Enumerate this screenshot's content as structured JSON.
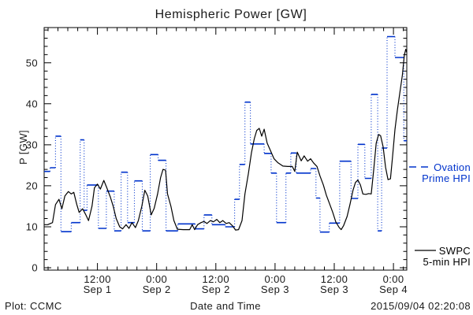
{
  "title": "Hemispheric Power [GW]",
  "footer": {
    "left": "Plot: CCMC",
    "xlabel": "Date and Time",
    "timestamp": "2015/09/04 02:20:08"
  },
  "legend": {
    "ovation": {
      "line1": "Ovation",
      "line2": "Prime HPI",
      "color": "#0033cc"
    },
    "swpc": {
      "line1": "SWPC",
      "line2": "5-min HPI",
      "color": "#000000"
    }
  },
  "chart_data": {
    "type": "line",
    "title": "Hemispheric Power [GW]",
    "xlabel": "Date and Time",
    "ylabel": "P [GW]",
    "x_unit": "hours since 2015-09-01 00:00 UT",
    "xlim": [
      1.2,
      74.7
    ],
    "ylim": [
      0,
      58.6
    ],
    "grid": false,
    "legend_position": "right-outside",
    "y_major_ticks": [
      0,
      10,
      20,
      30,
      40,
      50
    ],
    "y_minor_step": 2,
    "x_minor_step_hours": 2,
    "x_major_ticks": [
      {
        "hour": 12,
        "time": "12:00",
        "date": "Sep 1"
      },
      {
        "hour": 24,
        "time": "0:00",
        "date": "Sep 2"
      },
      {
        "hour": 36,
        "time": "12:00",
        "date": "Sep 2"
      },
      {
        "hour": 48,
        "time": "0:00",
        "date": "Sep 3"
      },
      {
        "hour": 60,
        "time": "12:00",
        "date": "Sep 3"
      },
      {
        "hour": 72,
        "time": "0:00",
        "date": "Sep 4"
      }
    ],
    "series": [
      {
        "name": "Ovation Prime HPI",
        "style": "steps-dotted-connectors",
        "color": "#0033cc",
        "steps": [
          [
            1.2,
            23.5
          ],
          [
            2.4,
            24.4
          ],
          [
            3.5,
            32.1
          ],
          [
            4.6,
            8.8
          ],
          [
            6.7,
            11.0
          ],
          [
            8.5,
            31.2
          ],
          [
            9.3,
            14.0
          ],
          [
            9.9,
            20.2
          ],
          [
            12.2,
            9.6
          ],
          [
            13.8,
            18.7
          ],
          [
            15.4,
            9.0
          ],
          [
            16.8,
            23.3
          ],
          [
            18.1,
            11.0
          ],
          [
            19.5,
            21.2
          ],
          [
            21.1,
            9.0
          ],
          [
            22.7,
            27.6
          ],
          [
            24.3,
            26.2
          ],
          [
            25.9,
            9.0
          ],
          [
            28.3,
            10.7
          ],
          [
            31.8,
            9.5
          ],
          [
            33.6,
            12.9
          ],
          [
            35.2,
            10.5
          ],
          [
            37.9,
            10.0
          ],
          [
            39.8,
            16.7
          ],
          [
            40.8,
            25.2
          ],
          [
            41.9,
            40.4
          ],
          [
            43.0,
            30.2
          ],
          [
            45.8,
            27.9
          ],
          [
            47.2,
            23.1
          ],
          [
            48.3,
            11.0
          ],
          [
            50.2,
            23.1
          ],
          [
            51.2,
            28.0
          ],
          [
            52.3,
            23.1
          ],
          [
            55.2,
            24.2
          ],
          [
            56.3,
            17.0
          ],
          [
            57.1,
            8.7
          ],
          [
            59.0,
            10.9
          ],
          [
            61.1,
            26.0
          ],
          [
            63.4,
            16.9
          ],
          [
            64.8,
            30.1
          ],
          [
            66.2,
            21.8
          ],
          [
            67.5,
            42.3
          ],
          [
            68.8,
            9.0
          ],
          [
            69.6,
            29.2
          ],
          [
            70.7,
            56.4
          ],
          [
            72.3,
            51.3
          ],
          [
            74.1,
            31.0
          ]
        ]
      },
      {
        "name": "SWPC 5-min HPI",
        "style": "line",
        "color": "#000000",
        "points": [
          [
            1.2,
            10.5
          ],
          [
            1.9,
            10.5
          ],
          [
            2.9,
            11.0
          ],
          [
            3.5,
            15.4
          ],
          [
            4.2,
            16.7
          ],
          [
            4.8,
            14.4
          ],
          [
            5.4,
            17.5
          ],
          [
            6.1,
            18.6
          ],
          [
            6.7,
            18.0
          ],
          [
            7.2,
            18.4
          ],
          [
            7.8,
            15.5
          ],
          [
            8.3,
            13.5
          ],
          [
            9.0,
            14.4
          ],
          [
            9.6,
            13.0
          ],
          [
            10.2,
            11.5
          ],
          [
            10.9,
            15.0
          ],
          [
            11.4,
            19.5
          ],
          [
            12.0,
            20.4
          ],
          [
            12.6,
            19.2
          ],
          [
            13.3,
            21.3
          ],
          [
            13.9,
            19.5
          ],
          [
            14.6,
            17.3
          ],
          [
            15.2,
            15.0
          ],
          [
            15.8,
            12.0
          ],
          [
            16.5,
            10.0
          ],
          [
            17.1,
            9.5
          ],
          [
            17.8,
            10.5
          ],
          [
            18.4,
            9.6
          ],
          [
            19.0,
            11.0
          ],
          [
            19.7,
            9.8
          ],
          [
            20.3,
            11.5
          ],
          [
            21.0,
            15.0
          ],
          [
            21.6,
            18.9
          ],
          [
            22.2,
            17.5
          ],
          [
            22.9,
            12.9
          ],
          [
            23.5,
            14.5
          ],
          [
            24.2,
            18.0
          ],
          [
            24.8,
            22.0
          ],
          [
            25.3,
            24.0
          ],
          [
            25.8,
            23.8
          ],
          [
            26.2,
            18.0
          ],
          [
            26.9,
            15.0
          ],
          [
            27.5,
            11.5
          ],
          [
            28.2,
            9.4
          ],
          [
            29.4,
            9.3
          ],
          [
            30.7,
            9.3
          ],
          [
            31.2,
            10.5
          ],
          [
            31.7,
            9.3
          ],
          [
            32.3,
            10.5
          ],
          [
            33.0,
            11.0
          ],
          [
            33.6,
            11.3
          ],
          [
            34.2,
            10.8
          ],
          [
            34.9,
            11.5
          ],
          [
            35.5,
            11.2
          ],
          [
            36.2,
            11.8
          ],
          [
            36.8,
            11.0
          ],
          [
            37.4,
            11.5
          ],
          [
            38.1,
            10.8
          ],
          [
            38.7,
            11.0
          ],
          [
            39.4,
            10.2
          ],
          [
            40.0,
            9.2
          ],
          [
            40.6,
            9.3
          ],
          [
            41.3,
            11.5
          ],
          [
            41.9,
            18.0
          ],
          [
            42.6,
            23.0
          ],
          [
            43.2,
            28.0
          ],
          [
            43.8,
            31.5
          ],
          [
            44.3,
            33.5
          ],
          [
            44.8,
            34.0
          ],
          [
            45.3,
            32.1
          ],
          [
            45.8,
            33.8
          ],
          [
            46.4,
            30.4
          ],
          [
            47.0,
            28.8
          ],
          [
            47.8,
            26.6
          ],
          [
            48.6,
            25.6
          ],
          [
            49.6,
            24.8
          ],
          [
            50.6,
            24.7
          ],
          [
            51.5,
            24.7
          ],
          [
            52.0,
            23.5
          ],
          [
            52.5,
            28.2
          ],
          [
            53.3,
            26.1
          ],
          [
            53.9,
            27.3
          ],
          [
            54.6,
            26.0
          ],
          [
            55.2,
            26.6
          ],
          [
            55.8,
            25.6
          ],
          [
            56.5,
            24.7
          ],
          [
            57.1,
            22.4
          ],
          [
            57.8,
            20.2
          ],
          [
            58.4,
            17.7
          ],
          [
            59.0,
            15.8
          ],
          [
            59.7,
            13.5
          ],
          [
            60.3,
            11.2
          ],
          [
            61.0,
            9.8
          ],
          [
            61.4,
            9.3
          ],
          [
            61.9,
            10.3
          ],
          [
            62.6,
            12.5
          ],
          [
            63.2,
            15.5
          ],
          [
            63.8,
            18.9
          ],
          [
            64.3,
            20.8
          ],
          [
            64.8,
            21.4
          ],
          [
            65.3,
            20.2
          ],
          [
            65.8,
            18.0
          ],
          [
            66.4,
            17.9
          ],
          [
            67.0,
            18.1
          ],
          [
            67.5,
            18.0
          ],
          [
            68.0,
            24.0
          ],
          [
            68.5,
            30.4
          ],
          [
            69.0,
            32.5
          ],
          [
            69.4,
            32.2
          ],
          [
            69.9,
            29.5
          ],
          [
            70.4,
            24.5
          ],
          [
            70.9,
            21.5
          ],
          [
            71.4,
            21.7
          ],
          [
            71.8,
            27.0
          ],
          [
            72.3,
            33.7
          ],
          [
            72.8,
            38.5
          ],
          [
            73.3,
            42.7
          ],
          [
            73.8,
            47.0
          ],
          [
            74.2,
            51.9
          ],
          [
            74.5,
            53.3
          ],
          [
            74.7,
            52.5
          ]
        ]
      }
    ]
  }
}
